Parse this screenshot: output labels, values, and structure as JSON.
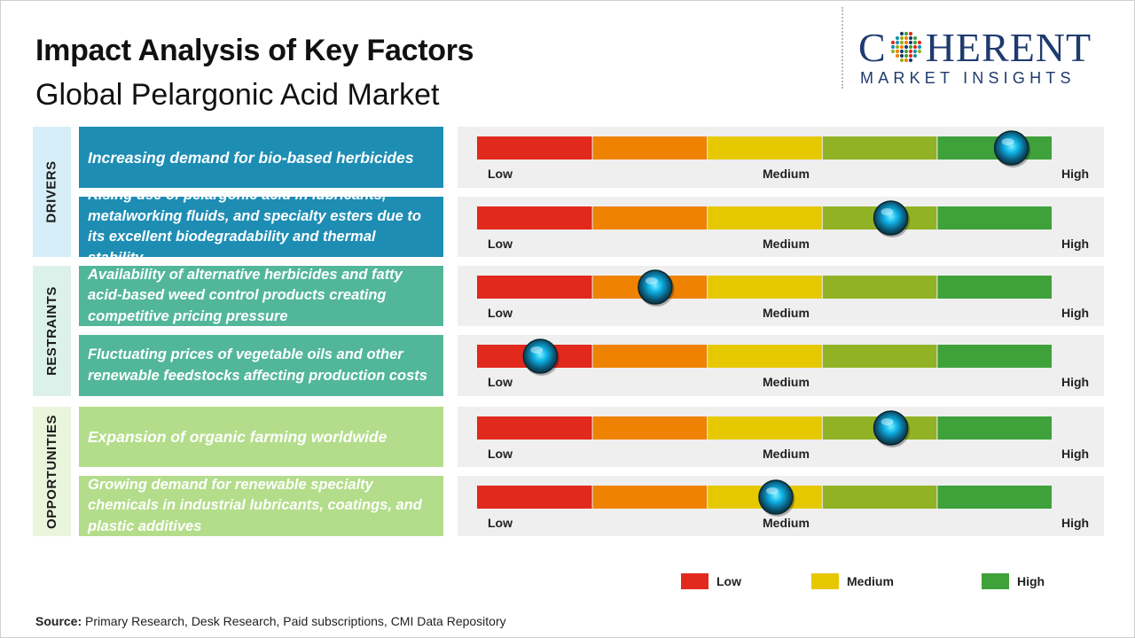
{
  "header": {
    "title": "Impact Analysis of Key Factors",
    "subtitle": "Global Pelargonic Acid Market"
  },
  "logo": {
    "brand_left": "C",
    "brand_right": "HERENT",
    "tagline": "MARKET INSIGHTS"
  },
  "colors": {
    "low": "#e2291d",
    "low_mid": "#ef8200",
    "medium": "#e6c800",
    "mid_high": "#92b225",
    "high": "#3ea13a",
    "drivers": "#1e8db4",
    "drivers_cat": "#d6eef8",
    "restraints": "#52b79a",
    "restraints_cat": "#dcf1ea",
    "opportunities": "#b3dd8a",
    "opportunities_cat": "#e9f5dd"
  },
  "categories": [
    {
      "label": "DRIVERS"
    },
    {
      "label": "RESTRAINTS"
    },
    {
      "label": "OPPORTUNITIES"
    }
  ],
  "scale_labels": {
    "low": "Low",
    "medium": "Medium",
    "high": "High"
  },
  "chart_data": {
    "type": "bar",
    "scale": {
      "min": 0,
      "max": 5,
      "segments": [
        "Low",
        "",
        "Medium",
        "",
        "High"
      ]
    },
    "factors": [
      {
        "category": "DRIVERS",
        "label": "Increasing demand for bio-based herbicides",
        "impact": 4.65
      },
      {
        "category": "DRIVERS",
        "label": "Rising use of pelargonic acid in lubricants, metalworking fluids, and specialty esters due to its excellent biodegradability and thermal stability",
        "impact": 3.6
      },
      {
        "category": "RESTRAINTS",
        "label": "Availability of alternative herbicides and fatty acid-based weed control products creating competitive pricing pressure",
        "impact": 1.55
      },
      {
        "category": "RESTRAINTS",
        "label": "Fluctuating prices of vegetable oils and other renewable feedstocks affecting production costs",
        "impact": 0.55
      },
      {
        "category": "OPPORTUNITIES",
        "label": "Expansion of organic farming worldwide",
        "impact": 3.6
      },
      {
        "category": "OPPORTUNITIES",
        "label": "Growing demand for renewable specialty chemicals in industrial lubricants, coatings, and plastic additives",
        "impact": 2.6
      }
    ]
  },
  "legend": [
    {
      "label": "Low",
      "color": "#e2291d"
    },
    {
      "label": "Medium",
      "color": "#e6c800"
    },
    {
      "label": "High",
      "color": "#3ea13a"
    }
  ],
  "source": {
    "label": "Source:",
    "text": " Primary Research, Desk Research, Paid subscriptions, CMI Data Repository"
  }
}
